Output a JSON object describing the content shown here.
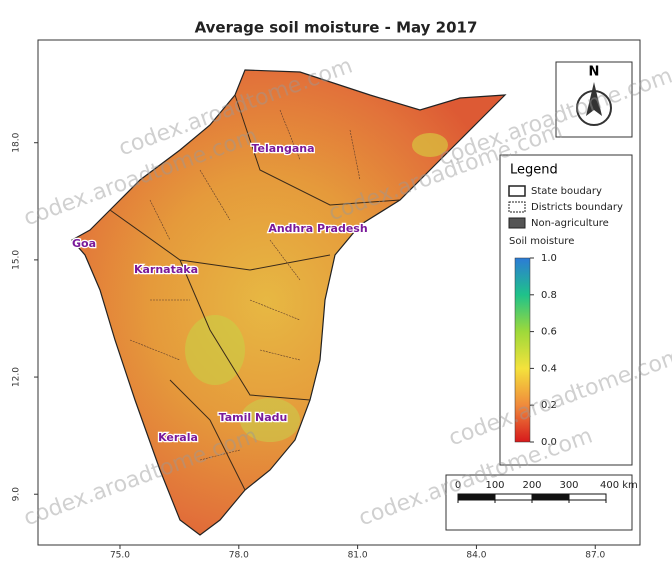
{
  "title": "Average soil moisture - May 2017",
  "map": {
    "xlim": [
      72.93,
      88.13
    ],
    "ylim": [
      7.7,
      20.63
    ],
    "xticks": [
      {
        "value": 75,
        "label": "75.0"
      },
      {
        "value": 78,
        "label": "78.0"
      },
      {
        "value": 81,
        "label": "81.0"
      },
      {
        "value": 84,
        "label": "84.0"
      },
      {
        "value": 87,
        "label": "87.0"
      }
    ],
    "yticks": [
      {
        "value": 9,
        "label": "9.0"
      },
      {
        "value": 12,
        "label": "12.0"
      },
      {
        "value": 15,
        "label": "15.0"
      },
      {
        "value": 18,
        "label": "18.0"
      }
    ],
    "regions": [
      "Telangana",
      "Andhra Pradesh",
      "Goa",
      "Karnataka",
      "Tamil Nadu",
      "Kerala"
    ]
  },
  "north_arrow": "N",
  "legend": {
    "title": "Legend",
    "items": [
      "State boudary",
      "Districts boundary",
      "Non-agriculture"
    ],
    "colorbar_title": "Soil moisture",
    "colorbar_lim": [
      0,
      1
    ],
    "colorbar_ticks": [
      {
        "value": 0,
        "label": "0.0"
      },
      {
        "value": 0.2,
        "label": "0.2"
      },
      {
        "value": 0.4,
        "label": "0.4"
      },
      {
        "value": 0.6,
        "label": "0.6"
      },
      {
        "value": 0.8,
        "label": "0.8"
      },
      {
        "value": 1,
        "label": "1.0"
      }
    ]
  },
  "scale_bar": {
    "lim": [
      0,
      400
    ],
    "ticks": [
      0,
      100,
      200,
      300,
      {
        "value": 400,
        "label": "400 km"
      }
    ]
  },
  "watermark": "codex.aroadtome.com"
}
